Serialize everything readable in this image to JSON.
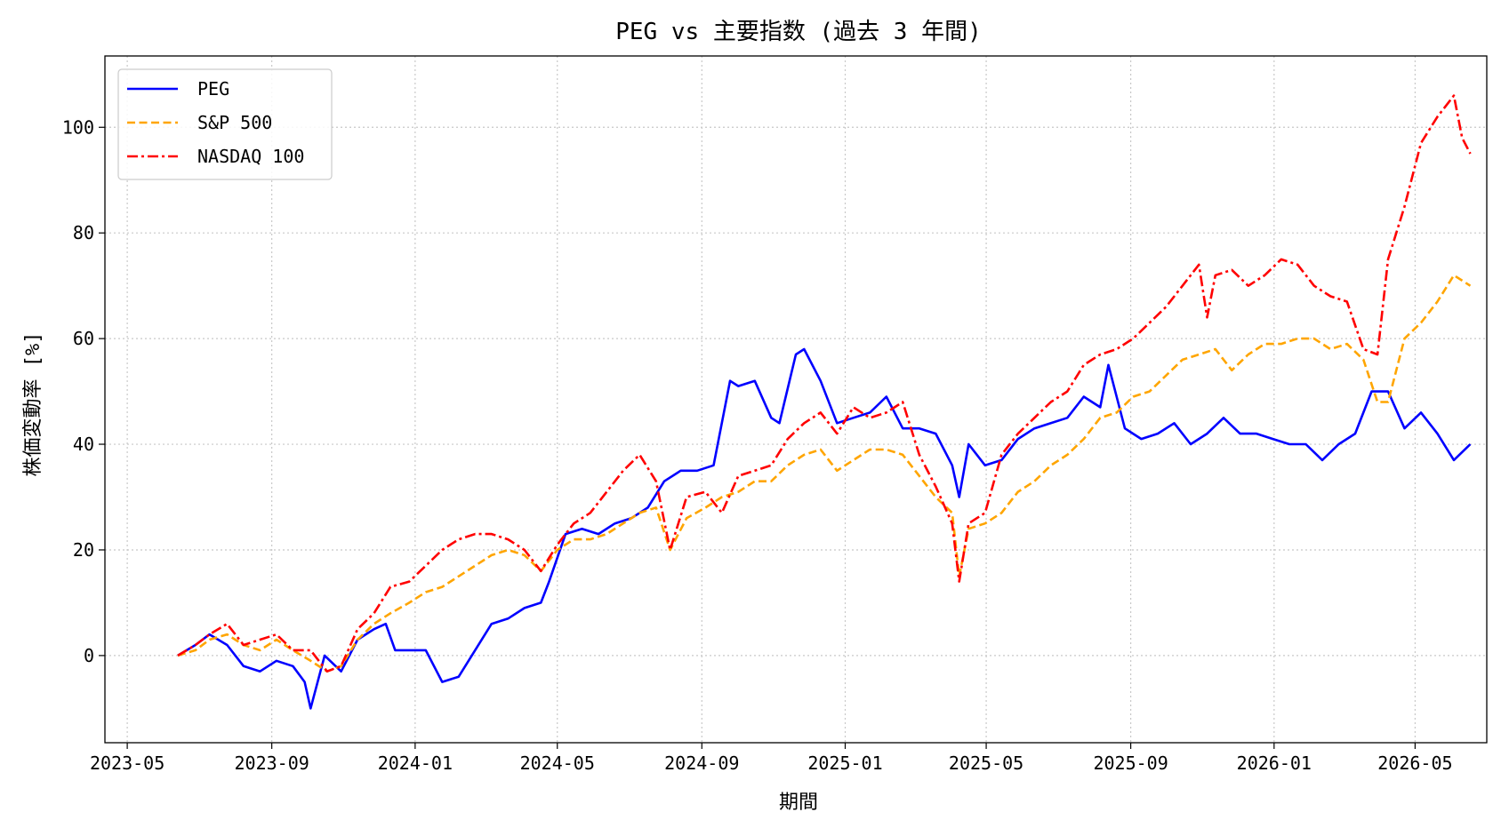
{
  "chart_data": {
    "type": "line",
    "title": "PEG vs 主要指数 (過去 3 年間)",
    "xlabel": "期間",
    "ylabel": "株価変動率 [%]",
    "xlim": [
      "2023-04-12",
      "2026-07-01"
    ],
    "ylim": [
      -16.5,
      113.5
    ],
    "grid": true,
    "legend_position": "top-left",
    "x_ticks": [
      "2023-05",
      "2023-09",
      "2024-01",
      "2024-05",
      "2024-09",
      "2025-01",
      "2025-05",
      "2025-09",
      "2026-01",
      "2026-05"
    ],
    "y_ticks": [
      0,
      20,
      40,
      60,
      80,
      100
    ],
    "series": [
      {
        "name": "PEG",
        "color": "#0000ff",
        "dash": "solid",
        "x": [
          "2023-06-13",
          "2023-06-28",
          "2023-07-10",
          "2023-07-25",
          "2023-08-08",
          "2023-08-22",
          "2023-09-05",
          "2023-09-19",
          "2023-09-29",
          "2023-10-04",
          "2023-10-16",
          "2023-10-30",
          "2023-11-13",
          "2023-11-27",
          "2023-12-07",
          "2023-12-15",
          "2023-12-27",
          "2024-01-10",
          "2024-01-24",
          "2024-02-07",
          "2024-02-21",
          "2024-03-06",
          "2024-03-20",
          "2024-04-03",
          "2024-04-17",
          "2024-04-24",
          "2024-05-08",
          "2024-05-22",
          "2024-06-05",
          "2024-06-19",
          "2024-07-03",
          "2024-07-17",
          "2024-07-31",
          "2024-08-14",
          "2024-08-28",
          "2024-09-11",
          "2024-09-25",
          "2024-10-02",
          "2024-10-16",
          "2024-10-30",
          "2024-11-06",
          "2024-11-20",
          "2024-11-27",
          "2024-12-11",
          "2024-12-25",
          "2025-01-08",
          "2025-01-22",
          "2025-02-05",
          "2025-02-19",
          "2025-03-05",
          "2025-03-19",
          "2025-04-02",
          "2025-04-08",
          "2025-04-16",
          "2025-04-30",
          "2025-05-14",
          "2025-05-28",
          "2025-06-11",
          "2025-06-25",
          "2025-07-09",
          "2025-07-23",
          "2025-08-06",
          "2025-08-13",
          "2025-08-27",
          "2025-09-10",
          "2025-09-24",
          "2025-10-08",
          "2025-10-22",
          "2025-11-05",
          "2025-11-19",
          "2025-12-03",
          "2025-12-17",
          "2025-12-31",
          "2026-01-14",
          "2026-01-28",
          "2026-02-11",
          "2026-02-25",
          "2026-03-11",
          "2026-03-25",
          "2026-04-08",
          "2026-04-22",
          "2026-05-06",
          "2026-05-20",
          "2026-06-03",
          "2026-06-17"
        ],
        "y": [
          0,
          2,
          4,
          2,
          -2,
          -3,
          -1,
          -2,
          -5,
          -10,
          0,
          -3,
          3,
          5,
          6,
          1,
          1,
          1,
          -5,
          -4,
          1,
          6,
          7,
          9,
          10,
          14,
          23,
          24,
          23,
          25,
          26,
          28,
          33,
          35,
          35,
          36,
          52,
          51,
          52,
          45,
          44,
          57,
          58,
          52,
          44,
          45,
          46,
          49,
          43,
          43,
          42,
          36,
          30,
          40,
          36,
          37,
          41,
          43,
          44,
          45,
          49,
          47,
          55,
          43,
          41,
          42,
          44,
          40,
          42,
          45,
          42,
          42,
          41,
          40,
          40,
          37,
          40,
          42,
          50,
          50,
          43,
          46,
          42,
          37,
          40
        ]
      },
      {
        "name": "S&P 500",
        "color": "#ffa500",
        "dash": "dashed",
        "x": [
          "2023-06-13",
          "2023-06-28",
          "2023-07-10",
          "2023-07-25",
          "2023-08-08",
          "2023-08-22",
          "2023-09-05",
          "2023-09-19",
          "2023-10-04",
          "2023-10-18",
          "2023-10-30",
          "2023-11-13",
          "2023-11-27",
          "2023-12-11",
          "2023-12-27",
          "2024-01-10",
          "2024-01-24",
          "2024-02-07",
          "2024-02-21",
          "2024-03-06",
          "2024-03-20",
          "2024-04-03",
          "2024-04-17",
          "2024-05-01",
          "2024-05-15",
          "2024-05-29",
          "2024-06-12",
          "2024-06-26",
          "2024-07-10",
          "2024-07-24",
          "2024-08-05",
          "2024-08-19",
          "2024-09-04",
          "2024-09-18",
          "2024-10-02",
          "2024-10-16",
          "2024-10-30",
          "2024-11-13",
          "2024-11-27",
          "2024-12-11",
          "2024-12-25",
          "2025-01-08",
          "2025-01-22",
          "2025-02-05",
          "2025-02-19",
          "2025-03-05",
          "2025-03-19",
          "2025-04-02",
          "2025-04-08",
          "2025-04-16",
          "2025-04-30",
          "2025-05-14",
          "2025-05-28",
          "2025-06-11",
          "2025-06-25",
          "2025-07-09",
          "2025-07-23",
          "2025-08-06",
          "2025-08-20",
          "2025-09-03",
          "2025-09-17",
          "2025-10-01",
          "2025-10-15",
          "2025-10-29",
          "2025-11-12",
          "2025-11-26",
          "2025-12-10",
          "2025-12-24",
          "2026-01-07",
          "2026-01-21",
          "2026-02-04",
          "2026-02-18",
          "2026-03-04",
          "2026-03-18",
          "2026-03-30",
          "2026-04-08",
          "2026-04-22",
          "2026-05-06",
          "2026-05-20",
          "2026-06-03",
          "2026-06-17"
        ],
        "y": [
          0,
          1,
          3,
          4,
          2,
          1,
          3,
          1,
          -1,
          -3,
          -2,
          3,
          6,
          8,
          10,
          12,
          13,
          15,
          17,
          19,
          20,
          19,
          16,
          20,
          22,
          22,
          23,
          25,
          27,
          28,
          20,
          26,
          28,
          30,
          31,
          33,
          33,
          36,
          38,
          39,
          35,
          37,
          39,
          39,
          38,
          34,
          30,
          27,
          15,
          24,
          25,
          27,
          31,
          33,
          36,
          38,
          41,
          45,
          46,
          49,
          50,
          53,
          56,
          57,
          58,
          54,
          57,
          59,
          59,
          60,
          60,
          58,
          59,
          56,
          48,
          48,
          60,
          63,
          67,
          72,
          70
        ]
      },
      {
        "name": "NASDAQ 100",
        "color": "#ff0000",
        "dash": "dashdot",
        "x": [
          "2023-06-13",
          "2023-06-28",
          "2023-07-10",
          "2023-07-25",
          "2023-08-08",
          "2023-08-22",
          "2023-09-05",
          "2023-09-19",
          "2023-10-04",
          "2023-10-18",
          "2023-10-30",
          "2023-11-13",
          "2023-11-27",
          "2023-12-11",
          "2023-12-27",
          "2024-01-10",
          "2024-01-24",
          "2024-02-07",
          "2024-02-21",
          "2024-03-06",
          "2024-03-20",
          "2024-04-03",
          "2024-04-17",
          "2024-05-01",
          "2024-05-15",
          "2024-05-29",
          "2024-06-12",
          "2024-06-26",
          "2024-07-10",
          "2024-07-24",
          "2024-08-05",
          "2024-08-19",
          "2024-09-04",
          "2024-09-18",
          "2024-10-02",
          "2024-10-16",
          "2024-10-30",
          "2024-11-13",
          "2024-11-27",
          "2024-12-11",
          "2024-12-25",
          "2025-01-08",
          "2025-01-22",
          "2025-02-05",
          "2025-02-19",
          "2025-03-05",
          "2025-03-19",
          "2025-04-02",
          "2025-04-08",
          "2025-04-16",
          "2025-04-30",
          "2025-05-14",
          "2025-05-28",
          "2025-06-11",
          "2025-06-25",
          "2025-07-09",
          "2025-07-23",
          "2025-08-06",
          "2025-08-20",
          "2025-09-03",
          "2025-09-17",
          "2025-10-01",
          "2025-10-15",
          "2025-10-29",
          "2025-11-05",
          "2025-11-12",
          "2025-11-26",
          "2025-12-10",
          "2025-12-24",
          "2026-01-07",
          "2026-01-21",
          "2026-02-04",
          "2026-02-18",
          "2026-03-04",
          "2026-03-18",
          "2026-03-30",
          "2026-04-08",
          "2026-04-22",
          "2026-05-06",
          "2026-05-20",
          "2026-06-03",
          "2026-06-10",
          "2026-06-17"
        ],
        "y": [
          0,
          2,
          4,
          6,
          2,
          3,
          4,
          1,
          1,
          -3,
          -2,
          5,
          8,
          13,
          14,
          17,
          20,
          22,
          23,
          23,
          22,
          20,
          16,
          21,
          25,
          27,
          31,
          35,
          38,
          33,
          20,
          30,
          31,
          27,
          34,
          35,
          36,
          41,
          44,
          46,
          42,
          47,
          45,
          46,
          48,
          38,
          32,
          25,
          14,
          25,
          27,
          38,
          42,
          45,
          48,
          50,
          55,
          57,
          58,
          60,
          63,
          66,
          70,
          74,
          64,
          72,
          73,
          70,
          72,
          75,
          74,
          70,
          68,
          67,
          58,
          57,
          75,
          85,
          97,
          102,
          106,
          98,
          95
        ]
      }
    ]
  }
}
